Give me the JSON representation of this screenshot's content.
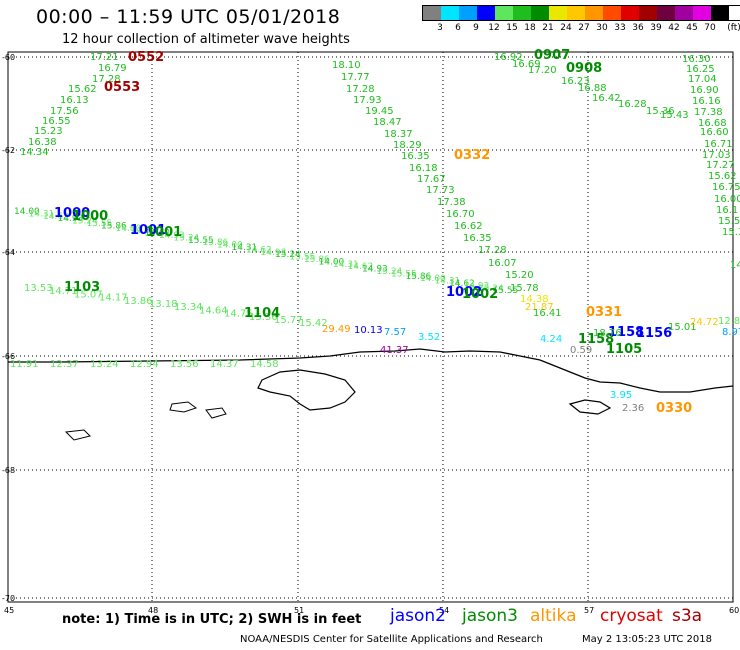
{
  "header": {
    "title": "00:00 – 11:59 UTC 05/01/2018",
    "subtitle": "12 hour collection of altimeter wave heights"
  },
  "color_scale": {
    "unit_label": "(ft)",
    "labels": [
      "3",
      "6",
      "9",
      "12",
      "15",
      "18",
      "21",
      "24",
      "27",
      "30",
      "33",
      "36",
      "39",
      "42",
      "45",
      "70"
    ],
    "colors": [
      "#808080",
      "#00e5ff",
      "#00a0ff",
      "#0000ff",
      "#5ee65e",
      "#1fbe1f",
      "#008c00",
      "#e8e800",
      "#ffc800",
      "#ff9600",
      "#ff4b00",
      "#e10000",
      "#a00000",
      "#6e0040",
      "#a000a0",
      "#e000e0",
      "#000000"
    ]
  },
  "axes": {
    "lat_labels": [
      "-60",
      "-62",
      "-64",
      "-66",
      "-68",
      "-70"
    ],
    "lon_labels": [
      "45",
      "48",
      "51",
      "54",
      "57",
      "60"
    ]
  },
  "tracks": [
    {
      "name": "left-arc",
      "color": "#1fbe1f",
      "labels": [
        "17.21",
        "16.79",
        "17.28",
        "15.62",
        "16.13",
        "17.56",
        "16.55",
        "15.23",
        "16.38",
        "14.34"
      ]
    },
    {
      "name": "center-arc",
      "color": "#1fbe1f",
      "labels": [
        "18.10",
        "17.77",
        "17.28",
        "17.93",
        "19.45",
        "18.47",
        "18.37",
        "18.29",
        "16.35",
        "16.18",
        "17.67",
        "17.73",
        "17.38",
        "16.70",
        "16.62",
        "16.35",
        "17.28",
        "16.07",
        "15.20",
        "15.78"
      ]
    },
    {
      "name": "upper-right-left",
      "color": "#1fbe1f",
      "labels": [
        "16.92",
        "16.69",
        "17.20",
        "16.23",
        "16.88",
        "16.42",
        "16.28",
        "15.36",
        "15.43"
      ]
    },
    {
      "name": "upper-right-column",
      "color": "#1fbe1f",
      "labels": [
        "16.30",
        "16.25",
        "17.04",
        "16.90",
        "16.16",
        "17.38",
        "16.68",
        "16.60",
        "16.71",
        "17.03",
        "17.27",
        "15.62",
        "16.75",
        "16.00",
        "16.1",
        "15.5",
        "15.3",
        "14.9"
      ]
    },
    {
      "name": "lower-green",
      "color": "#5ee65e",
      "labels": [
        "13.53",
        "14.71",
        "15.07",
        "14.17",
        "13.86",
        "13.18",
        "13.34",
        "14.64",
        "14.75",
        "15.36",
        "15.77",
        "15.42"
      ]
    },
    {
      "name": "bottom-row",
      "color": "#5ee65e",
      "labels": [
        "11.91",
        "12.37",
        "13.24",
        "12.94",
        "13.56",
        "14.37",
        "14.58"
      ]
    }
  ],
  "time_labels": [
    {
      "text": "0552",
      "color": "#a00000"
    },
    {
      "text": "0553",
      "color": "#a00000"
    },
    {
      "text": "0907",
      "color": "#008c00"
    },
    {
      "text": "0908",
      "color": "#008c00"
    },
    {
      "text": "0332",
      "color": "#ff9600"
    },
    {
      "text": "1000",
      "color": "#0000ff"
    },
    {
      "text": "1000",
      "color": "#008c00"
    },
    {
      "text": "1001",
      "color": "#0000ff"
    },
    {
      "text": "1001",
      "color": "#008c00"
    },
    {
      "text": "1002",
      "color": "#0000ff"
    },
    {
      "text": "1002",
      "color": "#008c00"
    },
    {
      "text": "1103",
      "color": "#008c00"
    },
    {
      "text": "1104",
      "color": "#008c00"
    },
    {
      "text": "1105",
      "color": "#008c00"
    },
    {
      "text": "1156",
      "color": "#0000ff"
    },
    {
      "text": "1158",
      "color": "#008c00"
    },
    {
      "text": "1158",
      "color": "#0000ff"
    },
    {
      "text": "0331",
      "color": "#ff9600"
    },
    {
      "text": "0330",
      "color": "#ff9600"
    }
  ],
  "point_values": [
    {
      "text": "29.49",
      "color": "#ff9600"
    },
    {
      "text": "10.13",
      "color": "#0000ff"
    },
    {
      "text": "7.57",
      "color": "#00a0ff"
    },
    {
      "text": "3.52",
      "color": "#00e5ff"
    },
    {
      "text": "41.37",
      "color": "#a000a0"
    },
    {
      "text": "4.24",
      "color": "#00e5ff"
    },
    {
      "text": "0.59",
      "color": "#808080"
    },
    {
      "text": "3.95",
      "color": "#00e5ff"
    },
    {
      "text": "2.36",
      "color": "#808080"
    },
    {
      "text": "21.87",
      "color": "#ffc800"
    },
    {
      "text": "14.38",
      "color": "#e8e800"
    },
    {
      "text": "16.41",
      "color": "#1fbe1f"
    },
    {
      "text": "18.76",
      "color": "#1fbe1f"
    },
    {
      "text": "15.01",
      "color": "#1fbe1f"
    },
    {
      "text": "24.72",
      "color": "#ffc800"
    },
    {
      "text": "12.80",
      "color": "#5ee65e"
    },
    {
      "text": "8.97",
      "color": "#00a0ff"
    },
    {
      "text": "5.81",
      "color": "#00e5ff"
    }
  ],
  "footer": {
    "note": "note:  1) Time is in UTC;  2) SWH is in feet",
    "legend": [
      {
        "label": "jason2",
        "color": "#0000ff"
      },
      {
        "label": "jason3",
        "color": "#008c00"
      },
      {
        "label": "altika",
        "color": "#ff9600"
      },
      {
        "label": "cryosat",
        "color": "#e10000"
      },
      {
        "label": "s3a",
        "color": "#a00000"
      }
    ],
    "credit": "NOAA/NESDIS Center for Satellite Applications and Research",
    "generated": "May  2 13:05:23 UTC 2018"
  }
}
